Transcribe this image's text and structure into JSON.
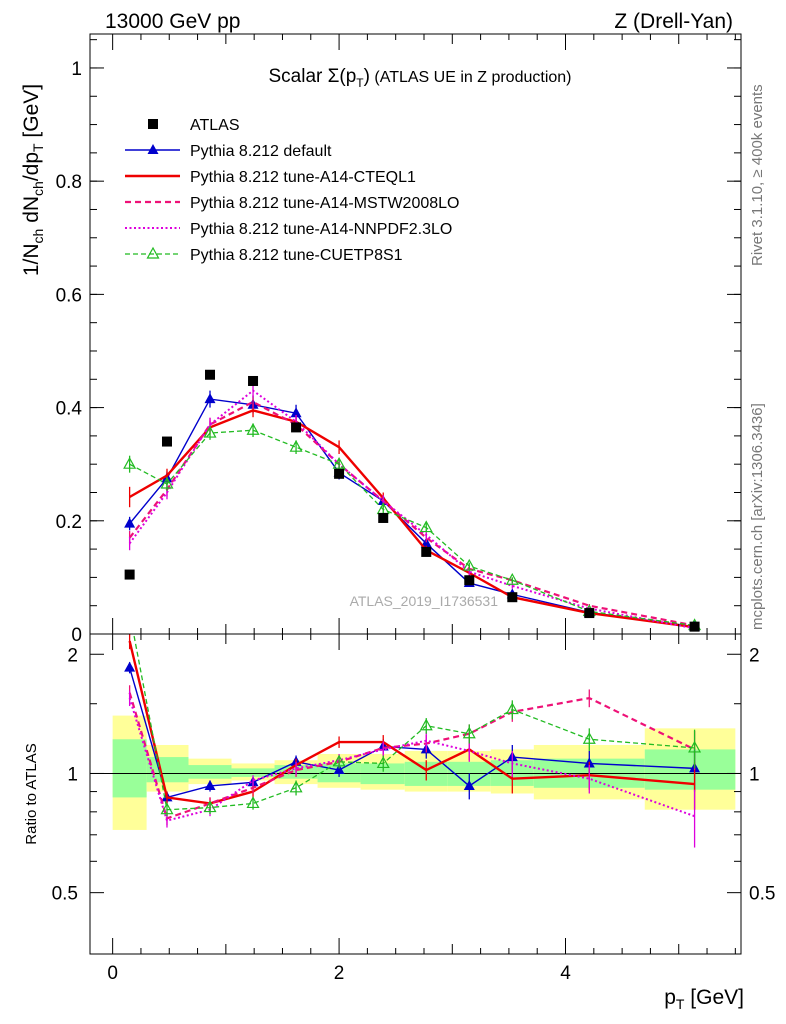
{
  "header": {
    "left": "13000 GeV pp",
    "right": "Z (Drell-Yan)"
  },
  "side_labels": {
    "rivet": "Rivet 3.1.10, ≥ 400k events",
    "site": "mcplots.cern.ch [arXiv:1306.3436]"
  },
  "colors": {
    "atlas": "#000000",
    "default": "#0000cc",
    "cteql1": "#ee0000",
    "mstw": "#ee1177",
    "nnpdf": "#dd00dd",
    "cuetp8s1": "#22bb22",
    "band_inner": "#99ff99",
    "band_outer": "#ffff99"
  },
  "chart_data": [
    {
      "type": "line",
      "title_parts": {
        "prefix": "Scalar ",
        "sigma": "Σ(p",
        "sub": "T",
        "suffix": ")",
        "rest": " (ATLAS UE in Z production)"
      },
      "ylabel_parts": {
        "a": "1/N",
        "b": "ch",
        "c": " dN",
        "d": "ch",
        "e": "/dp",
        "f": "T",
        "g": " [GeV]"
      },
      "watermark": "ATLAS_2019_I1736531",
      "xlim": [
        -0.2,
        5.55
      ],
      "ylim": [
        0,
        1.06
      ],
      "yticks": [
        0,
        0.2,
        0.4,
        0.6,
        0.8,
        1
      ],
      "yticklabels": [
        "0",
        "0.2",
        "0.4",
        "0.6",
        "0.8",
        "1"
      ],
      "legend": [
        "ATLAS",
        "Pythia 8.212 default",
        "Pythia 8.212 tune-A14-CTEQL1",
        "Pythia 8.212 tune-A14-MSTW2008LO",
        "Pythia 8.212 tune-A14-NNPDF2.3LO",
        "Pythia 8.212 tune-CUETP8S1"
      ],
      "x": [
        0.15,
        0.48,
        0.86,
        1.24,
        1.62,
        2.0,
        2.39,
        2.77,
        3.15,
        3.53,
        4.21,
        5.14
      ],
      "series": [
        {
          "name": "ATLAS",
          "key": "atlas",
          "values": [
            0.105,
            0.34,
            0.458,
            0.447,
            0.365,
            0.283,
            0.205,
            0.145,
            0.095,
            0.065,
            0.037,
            0.013
          ]
        },
        {
          "name": "Pythia 8.212 default",
          "key": "default",
          "values": [
            0.195,
            0.275,
            0.415,
            0.405,
            0.39,
            0.285,
            0.235,
            0.16,
            0.09,
            0.07,
            0.038,
            0.013
          ],
          "err": [
            0.012,
            0.012,
            0.015,
            0.015,
            0.015,
            0.012,
            0.01,
            0.008,
            0.006,
            0.005,
            0.003,
            0.002
          ]
        },
        {
          "name": "Pythia 8.212 tune-A14-CTEQL1",
          "key": "cteql1",
          "values": [
            0.242,
            0.28,
            0.365,
            0.395,
            0.375,
            0.33,
            0.24,
            0.148,
            0.108,
            0.065,
            0.037,
            0.012
          ],
          "err": [
            0.018,
            0.012,
            0.012,
            0.012,
            0.012,
            0.012,
            0.01,
            0.008,
            0.006,
            0.005,
            0.003,
            0.002
          ]
        },
        {
          "name": "Pythia 8.212 tune-A14-MSTW2008LO",
          "key": "mstw",
          "values": [
            0.17,
            0.255,
            0.37,
            0.41,
            0.37,
            0.3,
            0.235,
            0.17,
            0.115,
            0.095,
            0.05,
            0.015
          ],
          "err": [
            0.012,
            0.012,
            0.012,
            0.012,
            0.012,
            0.01,
            0.01,
            0.008,
            0.006,
            0.005,
            0.003,
            0.002
          ]
        },
        {
          "name": "Pythia 8.212 tune-A14-NNPDF2.3LO",
          "key": "nnpdf",
          "values": [
            0.16,
            0.25,
            0.37,
            0.43,
            0.375,
            0.3,
            0.235,
            0.175,
            0.11,
            0.085,
            0.045,
            0.01
          ],
          "err": [
            0.012,
            0.012,
            0.012,
            0.012,
            0.012,
            0.01,
            0.01,
            0.008,
            0.006,
            0.005,
            0.003,
            0.002
          ]
        },
        {
          "name": "Pythia 8.212 tune-CUETP8S1",
          "key": "cuetp8s1",
          "values": [
            0.3,
            0.265,
            0.355,
            0.36,
            0.33,
            0.3,
            0.22,
            0.188,
            0.12,
            0.095,
            0.04,
            0.015
          ],
          "err": [
            0.015,
            0.012,
            0.012,
            0.012,
            0.012,
            0.01,
            0.01,
            0.008,
            0.006,
            0.005,
            0.003,
            0.002
          ]
        }
      ]
    },
    {
      "type": "line",
      "ylabel": "Ratio to ATLAS",
      "xlabel_parts": {
        "a": "p",
        "b": "T",
        "c": " [GeV]"
      },
      "xlim": [
        -0.2,
        5.55
      ],
      "ylim": [
        0.35,
        2.25
      ],
      "xticks": [
        0,
        2,
        4
      ],
      "xticklabels": [
        "0",
        "2",
        "4"
      ],
      "yticks": [
        0.5,
        1,
        2
      ],
      "yticklabels": [
        "0.5",
        "1",
        "2"
      ],
      "bins": [
        [
          0.0,
          0.3
        ],
        [
          0.3,
          0.67
        ],
        [
          0.67,
          1.05
        ],
        [
          1.05,
          1.43
        ],
        [
          1.43,
          1.81
        ],
        [
          1.81,
          2.19
        ],
        [
          2.19,
          2.58
        ],
        [
          2.58,
          2.96
        ],
        [
          2.96,
          3.34
        ],
        [
          3.34,
          3.72
        ],
        [
          3.72,
          4.7
        ],
        [
          4.7,
          5.5
        ]
      ],
      "band_inner": [
        [
          0.87,
          1.22
        ],
        [
          0.95,
          1.1
        ],
        [
          0.97,
          1.05
        ],
        [
          0.98,
          1.03
        ],
        [
          0.97,
          1.05
        ],
        [
          0.95,
          1.06
        ],
        [
          0.94,
          1.06
        ],
        [
          0.93,
          1.07
        ],
        [
          0.93,
          1.07
        ],
        [
          0.93,
          1.08
        ],
        [
          0.92,
          1.09
        ],
        [
          0.91,
          1.15
        ]
      ],
      "band_outer": [
        [
          0.72,
          1.4
        ],
        [
          0.9,
          1.18
        ],
        [
          0.94,
          1.09
        ],
        [
          0.96,
          1.06
        ],
        [
          0.94,
          1.08
        ],
        [
          0.92,
          1.12
        ],
        [
          0.91,
          1.12
        ],
        [
          0.9,
          1.14
        ],
        [
          0.9,
          1.14
        ],
        [
          0.89,
          1.15
        ],
        [
          0.86,
          1.18
        ],
        [
          0.81,
          1.3
        ]
      ],
      "x": [
        0.15,
        0.48,
        0.86,
        1.24,
        1.62,
        2.0,
        2.39,
        2.77,
        3.15,
        3.53,
        4.21,
        5.14
      ],
      "series": [
        {
          "name": "Pythia 8.212 default",
          "key": "default",
          "values": [
            1.85,
            0.87,
            0.93,
            0.95,
            1.07,
            1.02,
            1.17,
            1.15,
            0.93,
            1.1,
            1.06,
            1.03
          ],
          "err": [
            0.06,
            0.03,
            0.03,
            0.03,
            0.04,
            0.04,
            0.05,
            0.06,
            0.07,
            0.08,
            0.08,
            0.13
          ]
        },
        {
          "name": "Pythia 8.212 tune-A14-CTEQL1",
          "key": "cteql1",
          "values": [
            2.16,
            0.87,
            0.84,
            0.9,
            1.05,
            1.2,
            1.2,
            1.02,
            1.15,
            0.97,
            0.99,
            0.94
          ],
          "err": [
            0.1,
            0.03,
            0.03,
            0.03,
            0.04,
            0.04,
            0.05,
            0.06,
            0.07,
            0.08,
            0.08,
            0.13
          ]
        },
        {
          "name": "Pythia 8.212 tune-A14-MSTW2008LO",
          "key": "mstw",
          "values": [
            1.6,
            0.77,
            0.84,
            0.92,
            1.02,
            1.07,
            1.16,
            1.19,
            1.26,
            1.43,
            1.55,
            1.15
          ],
          "err": [
            0.07,
            0.03,
            0.03,
            0.03,
            0.04,
            0.04,
            0.05,
            0.06,
            0.07,
            0.08,
            0.08,
            0.13
          ]
        },
        {
          "name": "Pythia 8.212 tune-A14-NNPDF2.3LO",
          "key": "nnpdf",
          "values": [
            1.55,
            0.76,
            0.81,
            0.96,
            1.03,
            1.08,
            1.15,
            1.21,
            1.14,
            1.06,
            0.97,
            0.78
          ],
          "err": [
            0.07,
            0.03,
            0.03,
            0.03,
            0.04,
            0.04,
            0.05,
            0.06,
            0.07,
            0.08,
            0.08,
            0.13
          ]
        },
        {
          "name": "Pythia 8.212 tune-CUETP8S1",
          "key": "cuetp8s1",
          "values": [
            2.55,
            0.81,
            0.82,
            0.84,
            0.92,
            1.07,
            1.06,
            1.32,
            1.26,
            1.45,
            1.22,
            1.16
          ],
          "err": [
            0.08,
            0.03,
            0.03,
            0.03,
            0.04,
            0.04,
            0.05,
            0.06,
            0.07,
            0.08,
            0.08,
            0.13
          ]
        }
      ]
    }
  ]
}
